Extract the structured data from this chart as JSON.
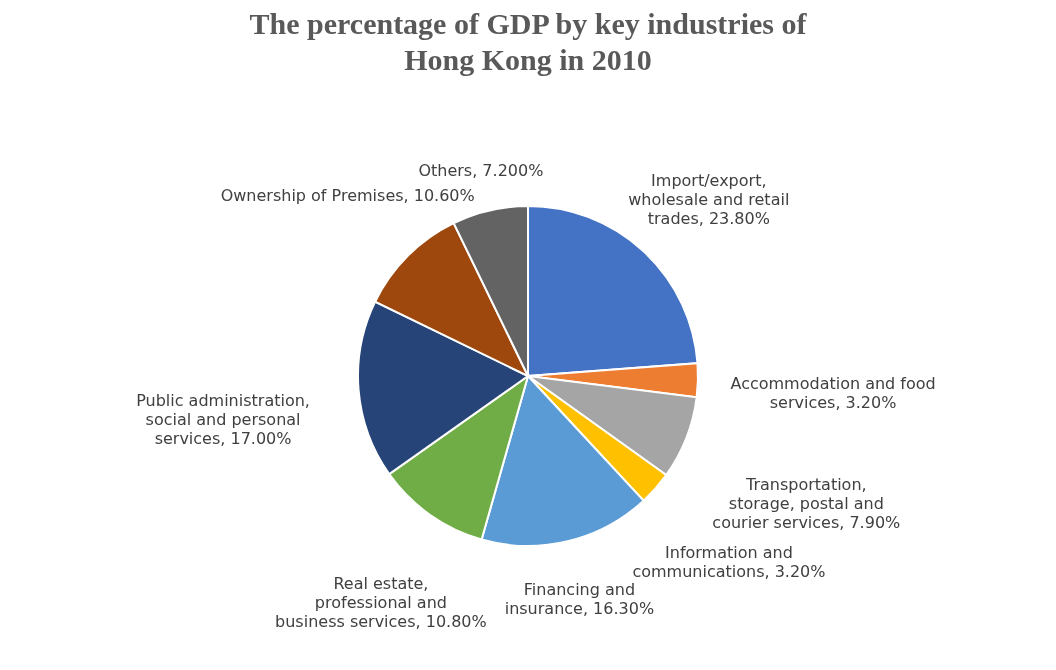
{
  "chart_data": {
    "type": "pie",
    "title": "The percentage of GDP by key industries  of Hong Kong in 2010",
    "categories": [
      "Import/export, wholesale and retail trades",
      "Accommodation and food services",
      "Transportation, storage, postal and courier services",
      "Information and communications",
      "Financing and insurance",
      "Real estate, professional and business services",
      "Public administration, social and personal services",
      "Ownership of Premises",
      "Others"
    ],
    "values": [
      23.8,
      3.2,
      7.9,
      3.2,
      16.3,
      10.8,
      17.0,
      10.6,
      7.2
    ],
    "value_labels": [
      "23.80%",
      "3.20%",
      "7.90%",
      "3.20%",
      "16.30%",
      "10.80%",
      "17.00%",
      "10.60%",
      "7.200%"
    ],
    "colors": [
      "#4472c4",
      "#ed7d31",
      "#a5a5a5",
      "#ffc000",
      "#5b9bd5",
      "#70ad47",
      "#264478",
      "#9e480e",
      "#636363"
    ],
    "legend": false
  }
}
